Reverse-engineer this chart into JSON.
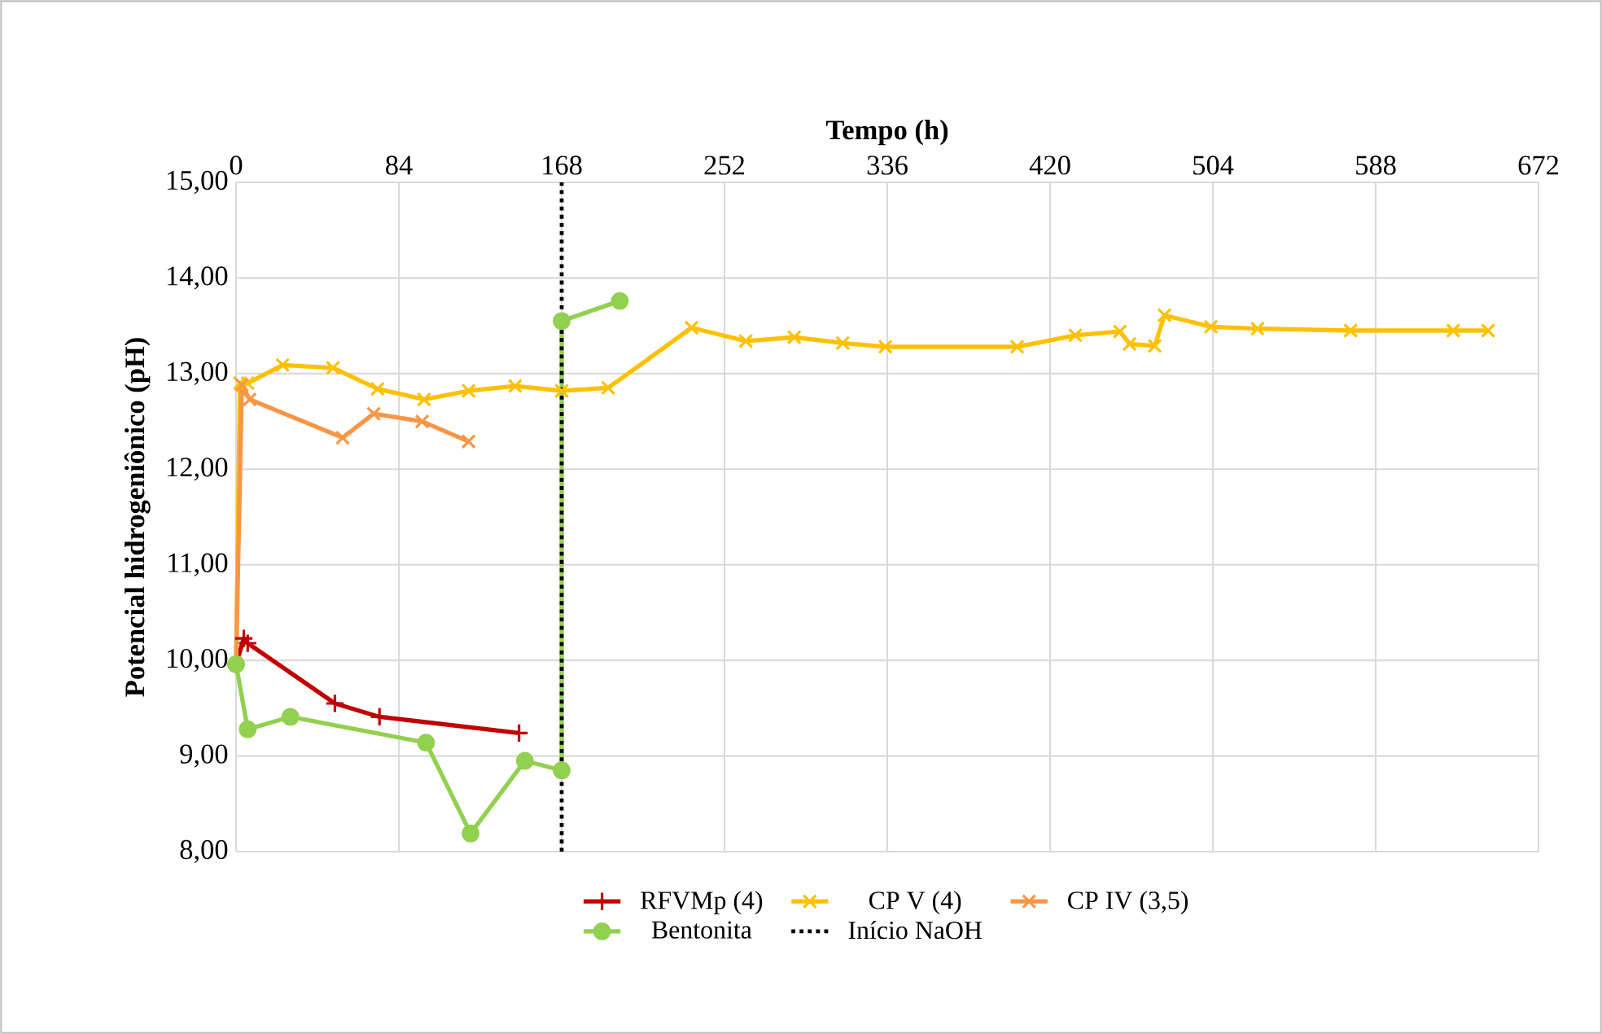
{
  "chart_data": {
    "type": "line",
    "xlabel": "Tempo (h)",
    "ylabel": "Potencial hidrogeniônico  (pH)",
    "xlim": [
      0,
      672
    ],
    "xticks": [
      0,
      84,
      168,
      252,
      336,
      420,
      504,
      588,
      672
    ],
    "ylim": [
      8,
      15
    ],
    "yticks": [
      {
        "value": 8,
        "label": "8,00"
      },
      {
        "value": 9,
        "label": "9,00"
      },
      {
        "value": 10,
        "label": "10,00"
      },
      {
        "value": 11,
        "label": "11,00"
      },
      {
        "value": 12,
        "label": "12,00"
      },
      {
        "value": 13,
        "label": "13,00"
      },
      {
        "value": 14,
        "label": "14,00"
      },
      {
        "value": 15,
        "label": "15,00"
      }
    ],
    "grid": true,
    "legend": "bottom",
    "line_style": "solid",
    "series": [
      {
        "name": "RFVMp (4)",
        "color": "#c00000",
        "marker": "plus",
        "x": [
          0,
          4,
          6,
          51,
          74,
          146
        ],
        "values": [
          9.96,
          10.23,
          10.18,
          9.55,
          9.41,
          9.24
        ]
      },
      {
        "name": "CP V (4)",
        "color": "#ffc000",
        "marker": "cross",
        "x": [
          0,
          2,
          6,
          24,
          50,
          73,
          97,
          120,
          144,
          168,
          192,
          235,
          263,
          288,
          313,
          335,
          403,
          433,
          456,
          461,
          474,
          479,
          503,
          527,
          575,
          628,
          646
        ],
        "values": [
          9.96,
          12.9,
          12.9,
          13.09,
          13.06,
          12.84,
          12.73,
          12.82,
          12.87,
          12.82,
          12.85,
          13.48,
          13.34,
          13.38,
          13.32,
          13.28,
          13.28,
          13.4,
          13.44,
          13.31,
          13.29,
          13.61,
          13.49,
          13.47,
          13.45,
          13.45,
          13.45
        ]
      },
      {
        "name": "CP IV (3,5)",
        "color": "#f79646",
        "marker": "cross",
        "x": [
          0,
          3,
          7,
          55,
          71,
          96,
          120
        ],
        "values": [
          9.96,
          12.88,
          12.73,
          12.33,
          12.58,
          12.5,
          12.29
        ]
      },
      {
        "name": "Bentonita",
        "color": "#92d050",
        "marker": "circle",
        "x": [
          0,
          6,
          28,
          98,
          121,
          149,
          168,
          168,
          198
        ],
        "values": [
          9.96,
          9.28,
          9.41,
          9.14,
          8.19,
          8.95,
          8.85,
          13.55,
          13.76
        ]
      }
    ],
    "ref_lines": [
      {
        "axis": "x",
        "value": 168,
        "label": "Início NaOH",
        "color": "#000000",
        "line_style": "dotted"
      }
    ]
  }
}
